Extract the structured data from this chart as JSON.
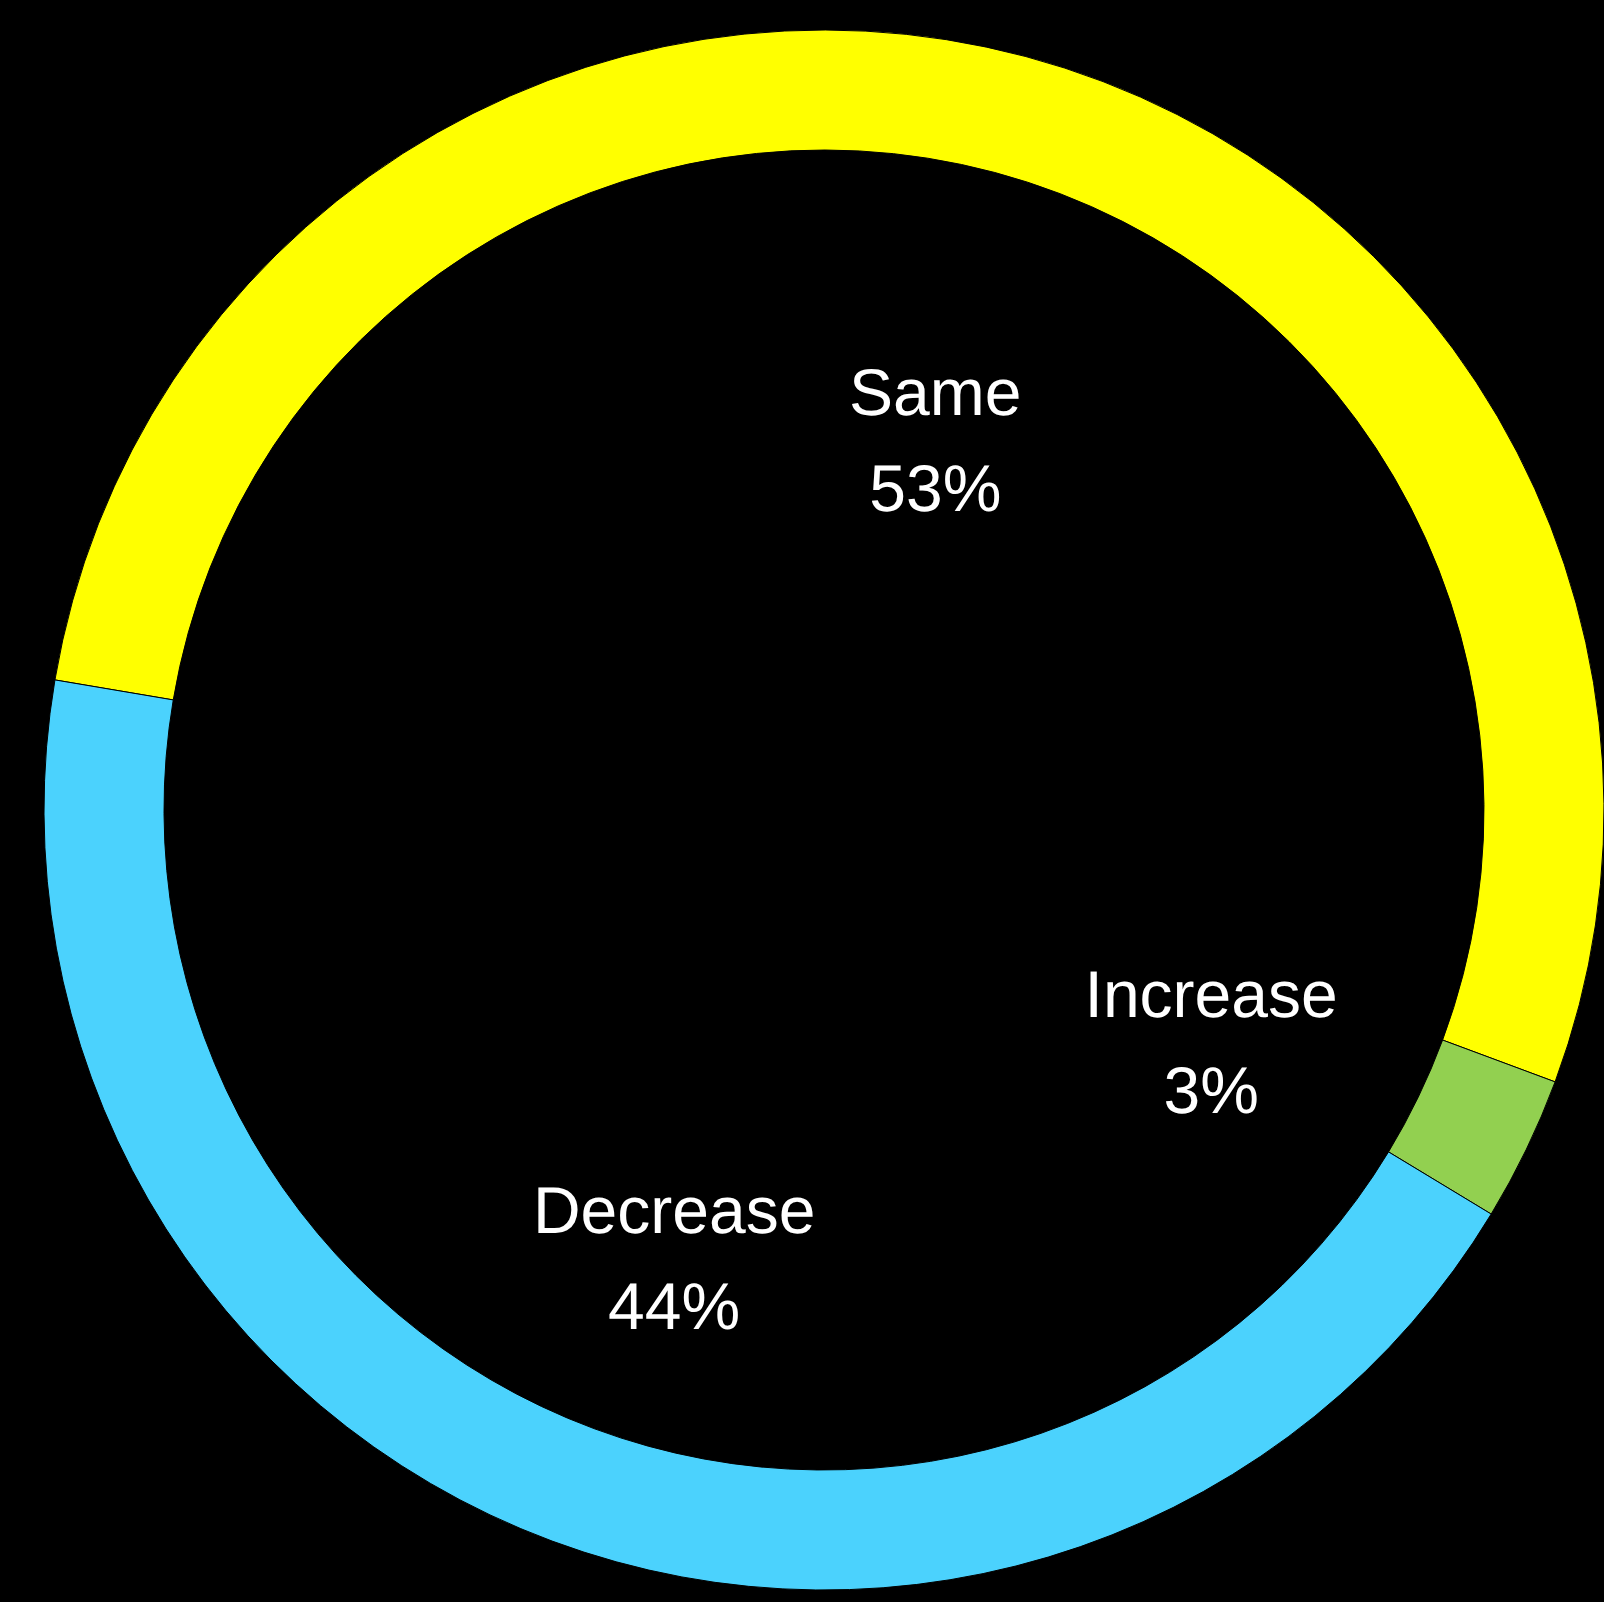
{
  "chart_data": {
    "type": "donut",
    "categories": [
      "Same",
      "Increase",
      "Decrease"
    ],
    "values": [
      53,
      3,
      44
    ],
    "value_labels": [
      "53%",
      "3%",
      "44%"
    ],
    "colors": [
      "#ffff00",
      "#92d050",
      "#4bd2fd"
    ]
  }
}
